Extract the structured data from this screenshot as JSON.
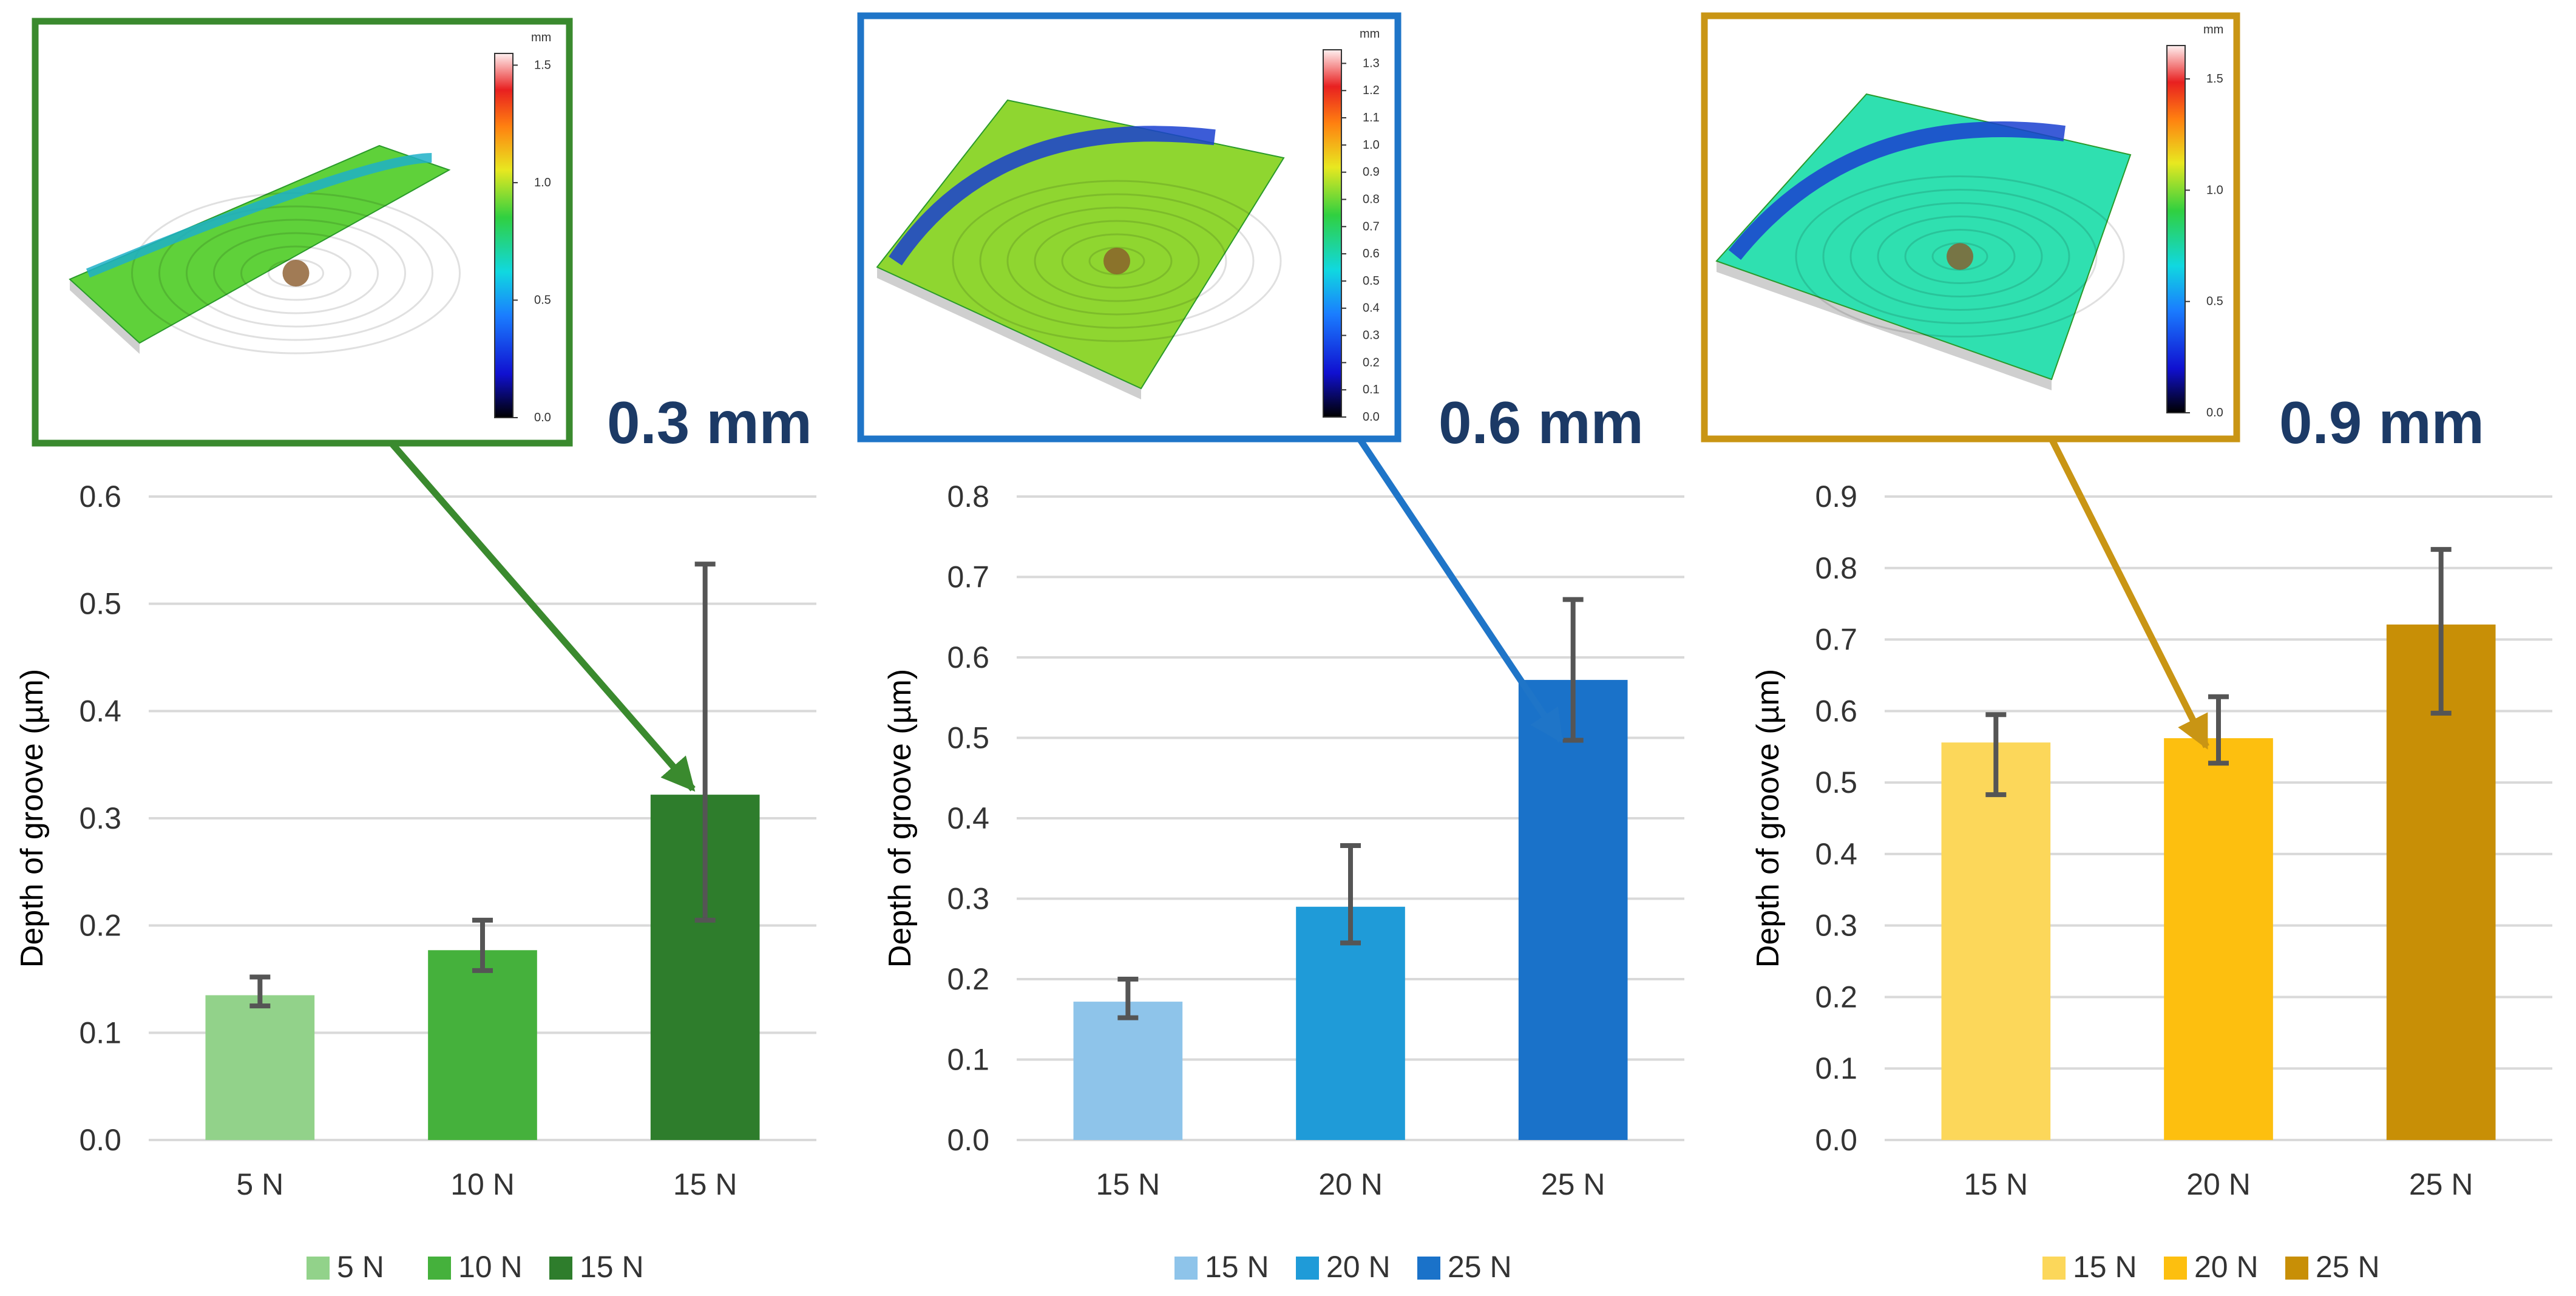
{
  "chart_data": [
    {
      "type": "bar",
      "groove_width_label": "0.3 mm",
      "frame_color": "#3a8a2e",
      "ylabel": "Depth of  groove (µm)",
      "ylim": [
        0,
        0.6
      ],
      "ytick_step": 0.1,
      "yticks": [
        "0.0",
        "0.1",
        "0.2",
        "0.3",
        "0.4",
        "0.5",
        "0.6"
      ],
      "categories": [
        "5 N",
        "10 N",
        "15 N"
      ],
      "values": [
        0.135,
        0.177,
        0.322
      ],
      "err_low": [
        0.125,
        0.158,
        0.205
      ],
      "err_high": [
        0.152,
        0.205,
        0.537
      ],
      "colors": [
        "#92d28a",
        "#45b13c",
        "#2e7d2c"
      ],
      "legend": [
        "5 N",
        "10 N",
        "15 N"
      ],
      "arrow_target_index": 2,
      "inset": {
        "colorbar_unit": "mm",
        "colorbar_ticks": [
          "1.5",
          "1.0",
          "0.5",
          "0.0"
        ],
        "colorbar_max": 1.55,
        "surface_color": "#5fd13a"
      }
    },
    {
      "type": "bar",
      "groove_width_label": "0.6 mm",
      "frame_color": "#1f75c8",
      "ylabel": "Depth of  groove (µm)",
      "ylim": [
        0,
        0.8
      ],
      "ytick_step": 0.1,
      "yticks": [
        "0.0",
        "0.1",
        "0.2",
        "0.3",
        "0.4",
        "0.5",
        "0.6",
        "0.7",
        "0.8"
      ],
      "categories": [
        "15 N",
        "20 N",
        "25 N"
      ],
      "values": [
        0.172,
        0.29,
        0.572
      ],
      "err_low": [
        0.152,
        0.245,
        0.497
      ],
      "err_high": [
        0.2,
        0.366,
        0.672
      ],
      "colors": [
        "#8ec4ea",
        "#1f9bd8",
        "#1a72c9"
      ],
      "legend": [
        "15 N",
        "20 N",
        "25 N"
      ],
      "arrow_target_index": 2,
      "inset": {
        "colorbar_unit": "mm",
        "colorbar_ticks": [
          "1.3",
          "1.2",
          "1.1",
          "1.0",
          "0.9",
          "0.8",
          "0.7",
          "0.6",
          "0.5",
          "0.4",
          "0.3",
          "0.2",
          "0.1",
          "0.0"
        ],
        "colorbar_max": 1.35,
        "surface_color": "#8fd630"
      }
    },
    {
      "type": "bar",
      "groove_width_label": "0.9 mm",
      "frame_color": "#c99514",
      "ylabel": "Depth of  groove (µm)",
      "ylim": [
        0,
        0.9
      ],
      "ytick_step": 0.1,
      "yticks": [
        "0.0",
        "0.1",
        "0.2",
        "0.3",
        "0.4",
        "0.5",
        "0.6",
        "0.7",
        "0.8",
        "0.9"
      ],
      "categories": [
        "15 N",
        "20 N",
        "25 N"
      ],
      "values": [
        0.556,
        0.562,
        0.721
      ],
      "err_low": [
        0.483,
        0.527,
        0.597
      ],
      "err_high": [
        0.595,
        0.62,
        0.826
      ],
      "colors": [
        "#fcd75a",
        "#fdbf0f",
        "#c88f06"
      ],
      "legend": [
        "15 N",
        "20 N",
        "25 N"
      ],
      "arrow_target_index": 1,
      "inset": {
        "colorbar_unit": "mm",
        "colorbar_ticks": [
          "1.5",
          "1.0",
          "0.5",
          "0.0"
        ],
        "colorbar_max": 1.65,
        "surface_color": "#2fe0b0"
      }
    }
  ]
}
